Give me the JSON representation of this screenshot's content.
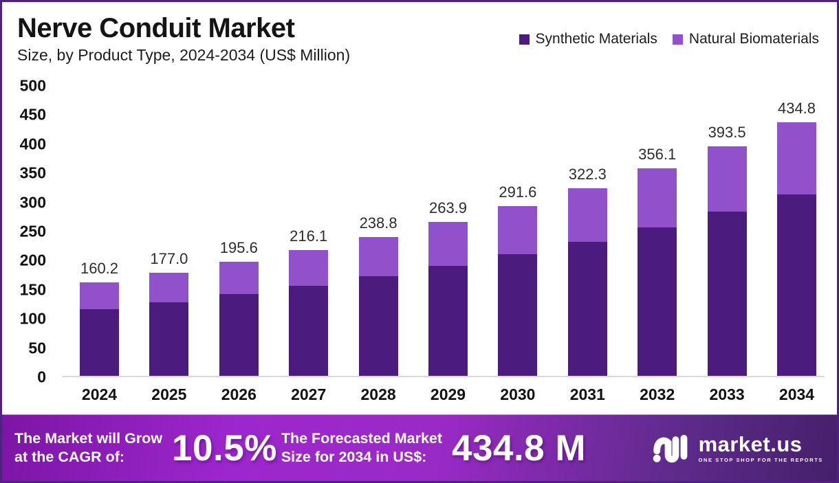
{
  "header": {
    "title": "Nerve Conduit Market",
    "subtitle": "Size, by Product Type, 2024-2034 (US$ Million)"
  },
  "chart_data": {
    "type": "bar",
    "stacked": true,
    "title": "Nerve Conduit Market",
    "subtitle": "Size, by Product Type, 2024-2034 (US$ Million)",
    "unit": "US$ Million",
    "categories": [
      "2024",
      "2025",
      "2026",
      "2027",
      "2028",
      "2029",
      "2030",
      "2031",
      "2032",
      "2033",
      "2034"
    ],
    "totals": [
      160.2,
      177.0,
      195.6,
      216.1,
      238.8,
      263.9,
      291.6,
      322.3,
      356.1,
      393.5,
      434.8
    ],
    "total_labels": [
      "160.2",
      "177.0",
      "195.6",
      "216.1",
      "238.8",
      "263.9",
      "291.6",
      "322.3",
      "356.1",
      "393.5",
      "434.8"
    ],
    "series": [
      {
        "name": "Synthetic Materials",
        "color": "#4B1C7E",
        "values_estimated": [
          114.5,
          126.6,
          139.9,
          154.5,
          170.7,
          188.7,
          208.5,
          230.4,
          254.6,
          281.4,
          310.9
        ]
      },
      {
        "name": "Natural Biomaterials",
        "color": "#9151CA",
        "values_estimated": [
          45.7,
          50.4,
          55.7,
          61.6,
          68.1,
          75.2,
          83.1,
          91.9,
          101.5,
          112.1,
          123.9
        ]
      }
    ],
    "ylim": [
      0,
      500
    ],
    "ytick_step": 50,
    "yticks": [
      "0",
      "50",
      "100",
      "150",
      "200",
      "250",
      "300",
      "350",
      "400",
      "450",
      "500"
    ],
    "grid": false,
    "legend_position": "top-right",
    "axis_line_color": "#d9d9d9"
  },
  "banner": {
    "cagr_line1": "The Market will Grow",
    "cagr_line2": "at the CAGR of:",
    "cagr_value": "10.5%",
    "forecast_line1": "The Forecasted Market",
    "forecast_line2": "Size for 2034 in US$:",
    "forecast_value": "434.8 M",
    "brand": "market.us",
    "tagline": "ONE STOP SHOP FOR THE REPORTS",
    "gradient_left": "#9D27CE",
    "gradient_right": "#44206B"
  }
}
